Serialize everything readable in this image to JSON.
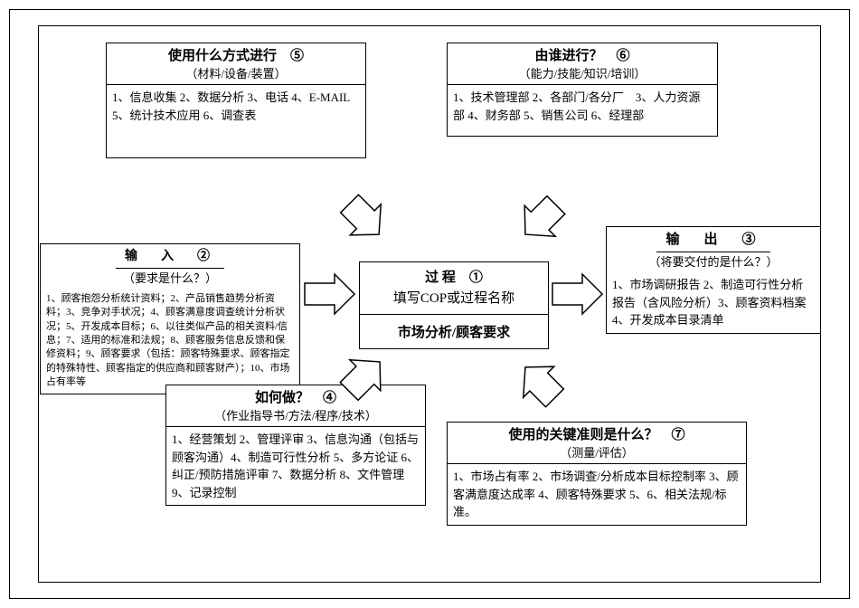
{
  "boxes": {
    "method": {
      "title": "使用什么方式进行　⑤",
      "subtitle": "（材料/设备/装置）",
      "body": "1、信息收集 2、数据分析 3、电话 4、E-MAIL\n5、统计技术应用 6、调查表"
    },
    "who": {
      "title": "由谁进行？　⑥",
      "subtitle": "（能力/技能/知识/培训）",
      "body": "1、技术管理部 2、各部门/各分厂　3、人力资源部 4、财务部 5、销售公司 6、经理部"
    },
    "input": {
      "title": "输　入　②",
      "subtitle": "（要求是什么？）",
      "body": "1、顾客抱怨分析统计资料；2、产品销售趋势分析资料；3、竞争对手状况；4、顾客满意度调查统计分析状况；5、开发成本目标；6、以往类似产品的相关资料/信息；7、适用的标准和法规；8、顾客服务信息反馈和保修资料；9、顾客要求（包括：顾客特殊要求、顾客指定的特殊特性、顾客指定的供应商和顾客财产）；10、市场占有率等"
    },
    "output": {
      "title": "输　出　③",
      "subtitle": "（将要交付的是什么？）",
      "body": "1、市场调研报告 2、制造可行性分析报告（含风险分析）3、顾客资料档案 4、开发成本目录清单"
    },
    "how": {
      "title": "如何做？　④",
      "subtitle": "（作业指导书/方法/程序/技术）",
      "body": "1、经营策划 2、管理评审 3、信息沟通（包括与顾客沟通）4、制造可行性分析 5、多方论证 6、纠正/预防措施评审 7、数据分析 8、文件管理 9、记录控制"
    },
    "criteria": {
      "title": "使用的关键准则是什么？　⑦",
      "subtitle": "（测量/评估）",
      "body": "1、市场占有率 2、市场调查/分析成本目标控制率 3、顾客满意度达成率 4、顾客特殊要求 5、6、相关法规/标准。"
    }
  },
  "process": {
    "title": "过 程　①",
    "line2": "填写COP或过程名称",
    "name": "市场分析/顾客要求"
  },
  "colors": {
    "stroke": "#000000",
    "fill": "#ffffff"
  }
}
